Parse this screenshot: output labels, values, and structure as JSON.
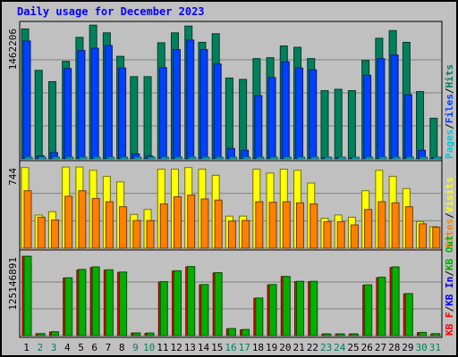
{
  "title": "Daily usage for December 2023",
  "colors": {
    "background": "#c0c0c0",
    "border": "#000000",
    "title": "#0000ff",
    "hits": "#00805c",
    "files": "#0040ff",
    "pages": "#00c8d8",
    "visits": "#ffff00",
    "sites": "#ff8000",
    "kbin": "#0000ff",
    "kbout": "#00b000",
    "kbf": "#ff0000",
    "weekday_label": "#000000",
    "weekend_label": "#00805c"
  },
  "chart_data": [
    {
      "type": "bar",
      "panel": "hits-files-pages",
      "max_label": "1462206",
      "ylim": [
        0,
        1462206
      ],
      "legend": [
        "Pages",
        "Files",
        "Hits"
      ],
      "x": [
        "1",
        "2",
        "3",
        "4",
        "5",
        "6",
        "7",
        "8",
        "9",
        "10",
        "11",
        "12",
        "13",
        "14",
        "15",
        "16",
        "17",
        "18",
        "19",
        "20",
        "21",
        "22",
        "23",
        "24",
        "25",
        "26",
        "27",
        "28",
        "29",
        "30",
        "31"
      ],
      "series": [
        {
          "name": "Hits",
          "values": [
            1438000,
            980000,
            855000,
            1080000,
            1345000,
            1480000,
            1395000,
            1135000,
            910000,
            910000,
            1285000,
            1395000,
            1470000,
            1290000,
            1385000,
            895000,
            880000,
            1110000,
            1120000,
            1250000,
            1235000,
            1110000,
            755000,
            770000,
            755000,
            1090000,
            1335000,
            1420000,
            1290000,
            745000,
            450000
          ]
        },
        {
          "name": "Files",
          "values": [
            1305000,
            35000,
            70000,
            1000000,
            1200000,
            1225000,
            1255000,
            1005000,
            55000,
            30000,
            1010000,
            1210000,
            1315000,
            1210000,
            1050000,
            115000,
            95000,
            700000,
            900000,
            1075000,
            1005000,
            985000,
            15000,
            15000,
            10000,
            925000,
            1110000,
            1150000,
            710000,
            95000,
            10000
          ]
        },
        {
          "name": "Pages",
          "values": [
            6000,
            3000,
            3000,
            5000,
            5000,
            5000,
            5000,
            5000,
            4000,
            3000,
            5000,
            5000,
            6000,
            5000,
            5000,
            4000,
            3000,
            5000,
            5000,
            5000,
            5000,
            5000,
            3000,
            3000,
            3000,
            5000,
            5000,
            6000,
            4000,
            3000,
            2000
          ]
        }
      ]
    },
    {
      "type": "bar",
      "panel": "visits-sites",
      "max_label": "744",
      "ylim": [
        0,
        744
      ],
      "legend": [
        "Sites",
        "Visits"
      ],
      "x": [
        "1",
        "2",
        "3",
        "4",
        "5",
        "6",
        "7",
        "8",
        "9",
        "10",
        "11",
        "12",
        "13",
        "14",
        "15",
        "16",
        "17",
        "18",
        "19",
        "20",
        "21",
        "22",
        "23",
        "24",
        "25",
        "26",
        "27",
        "28",
        "29",
        "30",
        "31"
      ],
      "series": [
        {
          "name": "Visits",
          "values": [
            730,
            300,
            330,
            735,
            735,
            705,
            650,
            600,
            305,
            350,
            715,
            715,
            730,
            715,
            660,
            290,
            290,
            715,
            680,
            715,
            705,
            590,
            270,
            300,
            280,
            520,
            705,
            650,
            540,
            240,
            195
          ]
        },
        {
          "name": "Sites",
          "values": [
            520,
            280,
            255,
            470,
            520,
            450,
            420,
            375,
            250,
            250,
            400,
            465,
            480,
            445,
            435,
            245,
            250,
            420,
            415,
            420,
            410,
            400,
            240,
            240,
            210,
            350,
            420,
            410,
            375,
            220,
            190
          ]
        }
      ]
    },
    {
      "type": "bar",
      "panel": "kbytes",
      "max_label": "125146891",
      "ylim": [
        0,
        125146891
      ],
      "legend": [
        "KB F",
        "KB In",
        "KB Out"
      ],
      "x": [
        "1",
        "2",
        "3",
        "4",
        "5",
        "6",
        "7",
        "8",
        "9",
        "10",
        "11",
        "12",
        "13",
        "14",
        "15",
        "16",
        "17",
        "18",
        "19",
        "20",
        "21",
        "22",
        "23",
        "24",
        "25",
        "26",
        "27",
        "28",
        "29",
        "30",
        "31"
      ],
      "series": [
        {
          "name": "KB F",
          "values": [
            123500000,
            3000000,
            5500000,
            89500000,
            102000000,
            106000000,
            102000000,
            98500000,
            4000000,
            3500000,
            83500000,
            100500000,
            107000000,
            79000000,
            97500000,
            10500000,
            9000000,
            58000000,
            79000000,
            92000000,
            84000000,
            84000000,
            2500000,
            2500000,
            2500000,
            78500000,
            90000000,
            106000000,
            65000000,
            4500000,
            2500000
          ]
        },
        {
          "name": "KB Out",
          "values": [
            123500000,
            3000000,
            6000000,
            90000000,
            103000000,
            107000000,
            102500000,
            99000000,
            4000000,
            4000000,
            84000000,
            101000000,
            107500000,
            79500000,
            98000000,
            11000000,
            9500000,
            58500000,
            79500000,
            92000000,
            84500000,
            84500000,
            2500000,
            2500000,
            2500000,
            79000000,
            91000000,
            107000000,
            65500000,
            5000000,
            3000000
          ]
        }
      ]
    }
  ],
  "days": [
    {
      "label": "1",
      "weekend": false
    },
    {
      "label": "2",
      "weekend": true
    },
    {
      "label": "3",
      "weekend": true
    },
    {
      "label": "4",
      "weekend": false
    },
    {
      "label": "5",
      "weekend": false
    },
    {
      "label": "6",
      "weekend": false
    },
    {
      "label": "7",
      "weekend": false
    },
    {
      "label": "8",
      "weekend": false
    },
    {
      "label": "9",
      "weekend": true
    },
    {
      "label": "10",
      "weekend": true
    },
    {
      "label": "11",
      "weekend": false
    },
    {
      "label": "12",
      "weekend": false
    },
    {
      "label": "13",
      "weekend": false
    },
    {
      "label": "14",
      "weekend": false
    },
    {
      "label": "15",
      "weekend": false
    },
    {
      "label": "16",
      "weekend": true
    },
    {
      "label": "17",
      "weekend": true
    },
    {
      "label": "18",
      "weekend": false
    },
    {
      "label": "19",
      "weekend": false
    },
    {
      "label": "20",
      "weekend": false
    },
    {
      "label": "21",
      "weekend": false
    },
    {
      "label": "22",
      "weekend": false
    },
    {
      "label": "23",
      "weekend": true
    },
    {
      "label": "24",
      "weekend": true
    },
    {
      "label": "25",
      "weekend": false
    },
    {
      "label": "26",
      "weekend": false
    },
    {
      "label": "27",
      "weekend": false
    },
    {
      "label": "28",
      "weekend": false
    },
    {
      "label": "29",
      "weekend": false
    },
    {
      "label": "30",
      "weekend": true
    },
    {
      "label": "31",
      "weekend": true
    }
  ]
}
